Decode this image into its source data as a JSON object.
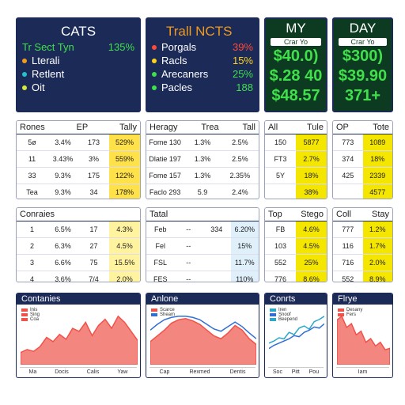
{
  "summary": [
    {
      "title": "CATS",
      "items": [
        {
          "label": "Tr Sect Tyn",
          "value": "135%",
          "color": "#3fe04a"
        },
        {
          "label": "Lterali",
          "color": "#f29a1c"
        },
        {
          "label": "Retlent",
          "color": "#25c3c9"
        },
        {
          "label": "Oit",
          "color": "#d8e83a"
        }
      ]
    },
    {
      "title": "Trall NCTS",
      "items": [
        {
          "label": "Porgals",
          "value": "39%",
          "color": "#ff4a3a"
        },
        {
          "label": "Racls",
          "value": "15%",
          "color": "#ffd11a"
        },
        {
          "label": "Arecaners",
          "value": "25%",
          "color": "#3fe04a"
        },
        {
          "label": "Pacles",
          "value": "188",
          "color": "#3fe04a"
        }
      ]
    }
  ],
  "kpis": [
    {
      "title": "MY",
      "sub": "Crar Yo",
      "values": [
        "$40.0)",
        "$.28 40",
        "$48.57"
      ]
    },
    {
      "title": "DAY",
      "sub": "Crar Yo",
      "values": [
        "$300)",
        "$39.90",
        "371+"
      ]
    }
  ],
  "tables": [
    {
      "headers": [
        "Rones",
        "EP",
        "Tally"
      ],
      "rows": [
        [
          "5ø",
          "3.4%",
          "173",
          "529%"
        ],
        [
          "11",
          "3.43%",
          "3%",
          "559%"
        ],
        [
          "33",
          "9.3%",
          "175",
          "122%"
        ],
        [
          "Tea",
          "9.3%",
          "34",
          "178%"
        ]
      ],
      "hl": {
        "col": 3,
        "color": "#ffe14a"
      }
    },
    {
      "headers": [
        "Heragy",
        "Trea",
        "Tall"
      ],
      "rows": [
        [
          "Fome 130",
          "1.3%",
          "2.5%"
        ],
        [
          "Dlatie 197",
          "1.3%",
          "2.5%"
        ],
        [
          "Fome 157",
          "1.3%",
          "2.35%"
        ],
        [
          "Faclo 293",
          "5.9",
          "2.4%"
        ]
      ]
    },
    {
      "headers": [
        "All",
        "Tule"
      ],
      "rows": [
        [
          "150",
          "5877"
        ],
        [
          "FT3",
          "2.7%"
        ],
        [
          "5Y",
          "18%"
        ],
        [
          "",
          "38%"
        ]
      ],
      "hl": {
        "col": 1,
        "color": "#f5e600"
      }
    },
    {
      "headers": [
        "OP",
        "Tote"
      ],
      "rows": [
        [
          "773",
          "1089"
        ],
        [
          "374",
          "18%"
        ],
        [
          "425",
          "2339"
        ],
        [
          "",
          "4577"
        ]
      ],
      "hl": {
        "col": 1,
        "color": "#f5e600"
      }
    },
    {
      "headers": [
        "Conraies"
      ],
      "rows": [
        [
          "1",
          "6.5%",
          "17",
          "4.3%"
        ],
        [
          "2",
          "6.3%",
          "27",
          "4.5%"
        ],
        [
          "3",
          "6.6%",
          "75",
          "15.5%"
        ],
        [
          "4",
          "3.6%",
          "7/4",
          "2.0%"
        ]
      ],
      "hl": {
        "col": 3,
        "color": "#fff3a0"
      }
    },
    {
      "headers": [
        "Tatal"
      ],
      "rows": [
        [
          "Feb",
          "--",
          "334",
          "6.20%"
        ],
        [
          "Fel",
          "--",
          "",
          "15%"
        ],
        [
          "FSL",
          "--",
          "",
          "11.7%"
        ],
        [
          "FES",
          "--",
          "",
          "110%"
        ]
      ],
      "hl": {
        "col": 3,
        "color": "#dff0fb"
      }
    },
    {
      "headers": [
        "Top",
        "Stego"
      ],
      "rows": [
        [
          "FB",
          "4.6%"
        ],
        [
          "103",
          "4.5%"
        ],
        [
          "552",
          "25%"
        ],
        [
          "776",
          "8.6%"
        ]
      ],
      "hl": {
        "col": 1,
        "color": "#f5e600"
      }
    },
    {
      "headers": [
        "Coll",
        "Stay"
      ],
      "rows": [
        [
          "777",
          "1.2%"
        ],
        [
          "116",
          "1.7%"
        ],
        [
          "716",
          "2.0%"
        ],
        [
          "552",
          "8.9%"
        ]
      ],
      "hl": {
        "col": 1,
        "color": "#f5e600"
      }
    }
  ],
  "charts": [
    {
      "title": "Contanies",
      "legend": [
        "Inis",
        "Sing",
        "Coa"
      ],
      "labels": [
        "Ma",
        "Docis",
        "Calis",
        "Yaw"
      ],
      "series": [
        {
          "color": "#f0524a",
          "values": [
            20,
            25,
            22,
            30,
            45,
            38,
            50,
            42,
            60,
            55,
            70,
            48,
            65,
            75,
            60,
            80,
            70,
            55,
            40
          ]
        }
      ]
    },
    {
      "title": "Anlone",
      "legend": [
        "Scarce",
        "Sheam"
      ],
      "labels": [
        "Cap",
        "Rexmed",
        "Dentis"
      ],
      "series": [
        {
          "color": "#f0524a",
          "values": [
            40,
            50,
            60,
            72,
            78,
            80,
            76,
            70,
            60,
            50,
            45,
            55,
            68,
            60,
            45,
            35
          ]
        },
        {
          "color": "#2f6fd6",
          "values": [
            60,
            70,
            78,
            82,
            84,
            84,
            82,
            78,
            70,
            62,
            58,
            66,
            74,
            66,
            55,
            45
          ]
        }
      ]
    },
    {
      "title": "Conrts",
      "legend": [
        "Iren",
        "Snoof",
        "Beepend"
      ],
      "labels": [
        "Soc",
        "Pitt",
        "Pou"
      ],
      "series": [
        {
          "color": "#2aa8c9",
          "values": [
            20,
            22,
            25,
            24,
            30,
            28,
            34,
            36,
            33,
            40,
            42,
            45
          ]
        },
        {
          "color": "#2f6fd6",
          "values": [
            15,
            18,
            20,
            22,
            24,
            27,
            26,
            30,
            32,
            35,
            34,
            38
          ]
        }
      ]
    },
    {
      "title": "Flrye",
      "legend": [
        "Desany",
        "Fers"
      ],
      "labels": [
        "Iam"
      ],
      "series": [
        {
          "color": "#f0524a",
          "values": [
            60,
            65,
            50,
            55,
            40,
            45,
            30,
            35,
            25,
            30,
            20,
            22
          ]
        }
      ]
    }
  ]
}
